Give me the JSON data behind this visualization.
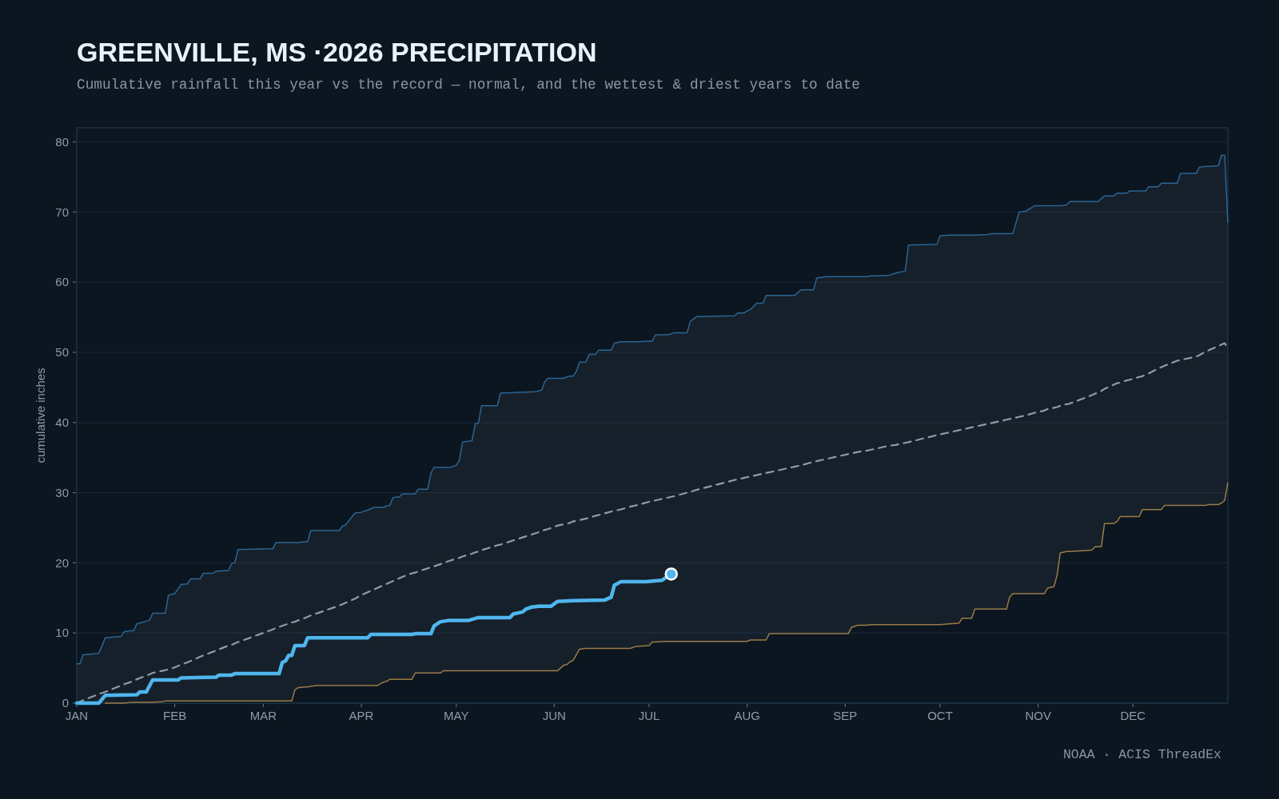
{
  "chart_data": {
    "type": "line",
    "title": "GREENVILLE, MS ·2026 PRECIPITATION",
    "subtitle": "Cumulative rainfall this year vs the record — normal, and the wettest & driest years to date",
    "ylabel": "cumulative inches",
    "annotations": [
      "NOAA · ACIS ThreadEx"
    ],
    "xlim": [
      "--01-01",
      "--12-31"
    ],
    "xticks": [
      {
        "value": "--01-01",
        "label": "JAN"
      },
      {
        "value": "--02-01",
        "label": "FEB"
      },
      {
        "value": "--03-01",
        "label": "MAR"
      },
      {
        "value": "--04-01",
        "label": "APR"
      },
      {
        "value": "--05-01",
        "label": "MAY"
      },
      {
        "value": "--06-01",
        "label": "JUN"
      },
      {
        "value": "--07-01",
        "label": "JUL"
      },
      {
        "value": "--08-01",
        "label": "AUG"
      },
      {
        "value": "--09-01",
        "label": "SEP"
      },
      {
        "value": "--10-01",
        "label": "OCT"
      },
      {
        "value": "--11-01",
        "label": "NOV"
      },
      {
        "value": "--12-01",
        "label": "DEC"
      }
    ],
    "ylim": [
      0,
      82
    ],
    "yticks": [
      0,
      10,
      20,
      30,
      40,
      50,
      60,
      70,
      80
    ],
    "grid": "y",
    "x": [
      "--01-01",
      "--01-02",
      "--01-03",
      "--01-08",
      "--01-10",
      "--01-15",
      "--01-16",
      "--01-18",
      "--01-19",
      "--01-20",
      "--01-24",
      "--01-25",
      "--01-28",
      "--01-29",
      "--01-30",
      "--02-01",
      "--02-03",
      "--02-05",
      "--02-06",
      "--02-09",
      "--02-10",
      "--02-13",
      "--02-14",
      "--02-18",
      "--02-19",
      "--02-20",
      "--02-21",
      "--03-04",
      "--03-05",
      "--03-10",
      "--03-11",
      "--03-12",
      "--03-14",
      "--03-15",
      "--03-16",
      "--03-18",
      "--03-25",
      "--03-26",
      "--03-27",
      "--03-30",
      "--04-01",
      "--04-02",
      "--04-03",
      "--04-05",
      "--04-06",
      "--04-08",
      "--04-09",
      "--04-10",
      "--04-11",
      "--04-13",
      "--04-14",
      "--04-17",
      "--04-18",
      "--04-19",
      "--04-22",
      "--04-23",
      "--04-24",
      "--04-26",
      "--04-27",
      "--04-29",
      "--05-01",
      "--05-02",
      "--05-03",
      "--05-06",
      "--05-07",
      "--05-08",
      "--05-09",
      "--05-14",
      "--05-15",
      "--05-26",
      "--05-28",
      "--05-29",
      "--05-30",
      "--06-02",
      "--06-04",
      "--06-05",
      "--06-06",
      "--06-07",
      "--06-08",
      "--06-09",
      "--06-11",
      "--06-12",
      "--06-14",
      "--06-15",
      "--06-19",
      "--06-20",
      "--06-22",
      "--06-25",
      "--06-27",
      "--07-01",
      "--07-02",
      "--07-03",
      "--07-06",
      "--07-07",
      "--07-09",
      "--07-13",
      "--07-14",
      "--07-16",
      "--07-28",
      "--07-29",
      "--07-31",
      "--08-01",
      "--08-02",
      "--08-04",
      "--08-06",
      "--08-07",
      "--08-08",
      "--08-16",
      "--08-18",
      "--08-22",
      "--08-23",
      "--08-26",
      "--09-02",
      "--09-03",
      "--09-05",
      "--09-08",
      "--09-09",
      "--09-11",
      "--09-15",
      "--09-17",
      "--09-20",
      "--09-21",
      "--09-30",
      "--10-01",
      "--10-04",
      "--10-07",
      "--10-08",
      "--10-11",
      "--10-12",
      "--10-16",
      "--10-17",
      "--10-22",
      "--10-23",
      "--10-24",
      "--10-26",
      "--10-28",
      "--10-31",
      "--11-03",
      "--11-04",
      "--11-06",
      "--11-07",
      "--11-08",
      "--11-10",
      "--11-11",
      "--11-18",
      "--11-19",
      "--11-20",
      "--11-21",
      "--11-22",
      "--11-25",
      "--11-26",
      "--11-27",
      "--11-29",
      "--11-30",
      "--12-03",
      "--12-04",
      "--12-05",
      "--12-06",
      "--12-09",
      "--12-10",
      "--12-11",
      "--12-15",
      "--12-16",
      "--12-21",
      "--12-22",
      "--12-24",
      "--12-25",
      "--12-28",
      "--12-29",
      "--12-30",
      "--12-31"
    ],
    "series": [
      {
        "color": "#2b6593",
        "values": [
          5.6,
          5.6,
          6.9,
          7.1,
          9.3,
          9.5,
          10.2,
          10.3,
          10.3,
          11.3,
          11.8,
          12.8,
          12.8,
          12.8,
          15.4,
          15.6,
          16.9,
          17.0,
          17.7,
          17.7,
          18.5,
          18.5,
          18.8,
          18.9,
          19.9,
          20.0,
          21.9,
          22.0,
          22.9,
          22.9,
          22.9,
          22.9,
          23.0,
          23.0,
          24.6,
          24.6,
          24.6,
          25.2,
          25.4,
          27.1,
          27.2,
          27.4,
          27.5,
          27.9,
          27.9,
          27.9,
          28.1,
          28.2,
          29.3,
          29.4,
          29.8,
          29.8,
          29.8,
          30.5,
          30.5,
          32.8,
          33.6,
          33.6,
          33.6,
          33.6,
          33.9,
          34.6,
          37.2,
          37.4,
          39.8,
          39.9,
          42.4,
          42.4,
          44.2,
          44.4,
          44.6,
          45.8,
          46.3,
          46.3,
          46.3,
          46.5,
          46.6,
          46.6,
          47.3,
          48.6,
          48.6,
          49.7,
          49.7,
          50.3,
          50.3,
          51.3,
          51.5,
          51.5,
          51.5,
          51.6,
          51.6,
          52.5,
          52.5,
          52.5,
          52.8,
          52.8,
          54.4,
          55.1,
          55.2,
          55.6,
          55.6,
          55.9,
          56.1,
          57.0,
          57.0,
          58.1,
          58.1,
          58.1,
          58.9,
          58.9,
          60.6,
          60.8,
          60.8,
          60.8,
          60.8,
          60.8,
          60.9,
          60.9,
          61.0,
          61.3,
          61.6,
          65.3,
          65.4,
          66.6,
          66.7,
          66.7,
          66.7,
          66.7,
          66.7,
          66.8,
          66.9,
          66.9,
          66.9,
          66.9,
          70.0,
          70.1,
          70.9,
          70.9,
          70.9,
          70.9,
          70.9,
          70.9,
          71.0,
          71.5,
          71.5,
          71.5,
          71.5,
          71.9,
          72.3,
          72.3,
          72.7,
          72.7,
          72.7,
          73.0,
          73.0,
          73.0,
          73.0,
          73.6,
          73.6,
          74.1,
          74.1,
          74.1,
          75.5,
          75.5,
          76.4,
          76.5,
          76.5,
          76.6,
          78.1,
          78.1,
          68.5
        ]
      },
      {
        "color": "#9a7b48",
        "values": [
          null,
          null,
          null,
          null,
          0,
          0,
          0,
          0.1,
          0.1,
          0.1,
          0.1,
          0.1,
          0.2,
          0.3,
          0.3,
          0.3,
          0.3,
          0.3,
          0.3,
          0.3,
          0.3,
          0.3,
          0.3,
          0.3,
          0.3,
          0.3,
          0.3,
          0.3,
          0.3,
          0.3,
          1.9,
          2.2,
          2.3,
          2.3,
          2.4,
          2.5,
          2.5,
          2.5,
          2.5,
          2.5,
          2.5,
          2.5,
          2.5,
          2.5,
          2.5,
          3.0,
          3.1,
          3.4,
          3.4,
          3.4,
          3.4,
          3.4,
          4.3,
          4.3,
          4.3,
          4.3,
          4.3,
          4.3,
          4.6,
          4.6,
          4.6,
          4.6,
          4.6,
          4.6,
          4.6,
          4.6,
          4.6,
          4.6,
          4.6,
          4.6,
          4.6,
          4.6,
          4.6,
          4.6,
          5.4,
          5.5,
          5.9,
          6.1,
          6.9,
          7.7,
          7.8,
          7.8,
          7.8,
          7.8,
          7.8,
          7.8,
          7.8,
          7.8,
          8.1,
          8.2,
          8.7,
          8.7,
          8.8,
          8.8,
          8.8,
          8.8,
          8.8,
          8.8,
          8.8,
          8.8,
          8.8,
          8.8,
          9.0,
          9.0,
          9.0,
          9.0,
          9.9,
          9.9,
          9.9,
          9.9,
          9.9,
          9.9,
          9.9,
          10.8,
          11.1,
          11.1,
          11.2,
          11.2,
          11.2,
          11.2,
          11.2,
          11.2,
          11.2,
          11.2,
          11.3,
          11.4,
          12.1,
          12.1,
          13.4,
          13.4,
          13.4,
          13.4,
          15.1,
          15.6,
          15.6,
          15.6,
          15.6,
          15.6,
          16.4,
          16.6,
          18.2,
          21.4,
          21.6,
          21.6,
          21.8,
          22.3,
          22.3,
          22.3,
          25.6,
          25.6,
          25.9,
          26.6,
          26.6,
          26.6,
          26.6,
          27.6,
          27.6,
          27.6,
          27.6,
          27.6,
          28.2,
          28.2,
          28.2,
          28.2,
          28.2,
          28.2,
          28.3,
          28.3,
          28.5,
          28.9,
          31.4
        ]
      },
      {
        "color": "#8d9bab",
        "line_style": "dashed",
        "values": [
          0,
          0.2,
          0.4,
          1.3,
          1.6,
          2.5,
          2.7,
          3.0,
          3.2,
          3.4,
          4.1,
          4.3,
          4.6,
          4.7,
          4.8,
          5.1,
          5.5,
          5.8,
          6.0,
          6.6,
          6.8,
          7.3,
          7.5,
          8.2,
          8.3,
          8.5,
          8.7,
          10.5,
          10.7,
          11.5,
          11.6,
          11.8,
          12.1,
          12.3,
          12.5,
          12.8,
          13.9,
          14.1,
          14.3,
          14.9,
          15.4,
          15.6,
          15.8,
          16.2,
          16.4,
          16.8,
          17.0,
          17.2,
          17.4,
          17.8,
          18.0,
          18.5,
          18.6,
          18.8,
          19.2,
          19.4,
          19.5,
          19.8,
          20.0,
          20.3,
          20.6,
          20.7,
          20.9,
          21.3,
          21.5,
          21.6,
          21.8,
          22.5,
          22.6,
          24.2,
          24.5,
          24.7,
          24.8,
          25.3,
          25.5,
          25.6,
          25.7,
          25.9,
          26.0,
          26.1,
          26.3,
          26.4,
          26.7,
          26.8,
          27.3,
          27.4,
          27.6,
          28.0,
          28.2,
          28.7,
          28.8,
          28.9,
          29.2,
          29.3,
          29.5,
          30.0,
          30.1,
          30.4,
          31.8,
          31.9,
          32.1,
          32.2,
          32.3,
          32.5,
          32.7,
          32.8,
          32.9,
          33.7,
          33.9,
          34.4,
          34.5,
          34.8,
          35.5,
          35.6,
          35.8,
          36.0,
          36.1,
          36.3,
          36.7,
          36.8,
          37.1,
          37.2,
          38.2,
          38.3,
          38.6,
          38.9,
          39.0,
          39.3,
          39.4,
          39.8,
          39.9,
          40.4,
          40.5,
          40.6,
          40.8,
          41.0,
          41.4,
          41.7,
          41.9,
          42.1,
          42.2,
          42.4,
          42.6,
          42.7,
          43.9,
          44.1,
          44.3,
          44.5,
          44.8,
          45.4,
          45.6,
          45.7,
          46.0,
          46.1,
          46.5,
          46.6,
          46.8,
          47.0,
          47.7,
          47.9,
          48.1,
          48.8,
          48.9,
          49.4,
          49.6,
          50.1,
          50.3,
          50.9,
          51.1,
          51.3,
          50.6
        ],
        "lower": [
          0,
          0,
          0,
          0,
          0,
          0,
          0,
          0.1,
          0.1,
          0.1,
          0.1,
          0.1,
          0.2,
          0.3,
          0.3,
          0.3,
          0.3,
          0.3,
          0.3,
          0.3,
          0.3,
          0.3,
          0.3,
          0.3,
          0.3,
          0.3,
          0.3,
          0.3,
          0.3,
          0.3,
          1.9,
          2.2,
          2.3,
          2.3,
          2.4,
          2.5,
          2.5,
          2.5,
          2.5,
          2.5,
          2.5,
          2.5,
          2.5,
          2.5,
          2.5,
          3.0,
          3.1,
          3.4,
          3.4,
          3.4,
          3.4,
          3.4,
          4.3,
          4.3,
          4.3,
          4.3,
          4.3,
          4.3,
          4.6,
          4.6,
          4.6,
          4.6,
          4.6,
          4.6,
          4.6,
          4.6,
          4.6,
          4.6,
          4.6,
          4.6,
          4.6,
          4.6,
          4.6,
          4.6,
          5.4,
          5.5,
          5.9,
          6.1,
          6.9,
          7.7,
          7.8,
          7.8,
          7.8,
          7.8,
          7.8,
          7.8,
          7.8,
          7.8,
          8.1,
          8.2,
          8.7,
          8.7,
          8.8,
          8.8,
          8.8,
          8.8,
          8.8,
          8.8,
          8.8,
          8.8,
          8.8,
          8.8,
          9.0,
          9.0,
          9.0,
          9.0,
          9.9,
          9.9,
          9.9,
          9.9,
          9.9,
          9.9,
          9.9,
          10.8,
          11.1,
          11.1,
          11.2,
          11.2,
          11.2,
          11.2,
          11.2,
          11.2,
          11.2,
          11.2,
          11.3,
          11.4,
          12.1,
          12.1,
          13.4,
          13.4,
          13.4,
          13.4,
          15.1,
          15.6,
          15.6,
          15.6,
          15.6,
          15.6,
          16.4,
          16.6,
          18.2,
          21.4,
          21.6,
          21.6,
          21.8,
          22.3,
          22.3,
          22.3,
          25.6,
          25.6,
          25.9,
          26.6,
          26.6,
          26.6,
          26.6,
          27.6,
          27.6,
          27.6,
          27.6,
          27.6,
          28.2,
          28.2,
          28.2,
          28.2,
          28.2,
          28.2,
          28.3,
          28.3,
          28.5,
          28.9,
          31.4
        ],
        "upper": [
          5.6,
          5.6,
          6.9,
          7.1,
          9.3,
          9.5,
          10.2,
          10.3,
          10.3,
          11.3,
          11.8,
          12.8,
          12.8,
          12.8,
          15.4,
          15.6,
          16.9,
          17.0,
          17.7,
          17.7,
          18.5,
          18.5,
          18.8,
          18.9,
          19.9,
          20.0,
          21.9,
          22.0,
          22.9,
          22.9,
          22.9,
          22.9,
          23.0,
          23.0,
          24.6,
          24.6,
          24.6,
          25.2,
          25.4,
          27.1,
          27.2,
          27.4,
          27.5,
          27.9,
          27.9,
          27.9,
          28.1,
          28.2,
          29.3,
          29.4,
          29.8,
          29.8,
          29.8,
          30.5,
          30.5,
          32.8,
          33.6,
          33.6,
          33.6,
          33.6,
          33.9,
          34.6,
          37.2,
          37.4,
          39.8,
          39.9,
          42.4,
          42.4,
          44.2,
          44.4,
          44.6,
          45.8,
          46.3,
          46.3,
          46.3,
          46.5,
          46.6,
          46.6,
          47.3,
          48.6,
          48.6,
          49.7,
          49.7,
          50.3,
          50.3,
          51.3,
          51.5,
          51.5,
          51.5,
          51.6,
          51.6,
          52.5,
          52.5,
          52.5,
          52.8,
          52.8,
          54.4,
          55.1,
          55.2,
          55.6,
          55.6,
          55.9,
          56.1,
          57.0,
          57.0,
          58.1,
          58.1,
          58.1,
          58.9,
          58.9,
          60.6,
          60.8,
          60.8,
          60.8,
          60.8,
          60.8,
          60.9,
          60.9,
          61.0,
          61.3,
          61.6,
          65.3,
          65.4,
          66.6,
          66.7,
          66.7,
          66.7,
          66.7,
          66.7,
          66.8,
          66.9,
          66.9,
          66.9,
          66.9,
          70.0,
          70.1,
          70.9,
          70.9,
          70.9,
          70.9,
          70.9,
          70.9,
          71.0,
          71.5,
          71.5,
          71.5,
          71.5,
          71.9,
          72.3,
          72.3,
          72.7,
          72.7,
          72.7,
          73.0,
          73.0,
          73.0,
          73.0,
          73.6,
          73.6,
          74.1,
          74.1,
          74.1,
          75.5,
          75.5,
          76.4,
          76.5,
          76.5,
          76.6,
          78.1,
          78.1,
          68.5
        ]
      },
      {
        "color": "#4fb6ee",
        "x": [
          "--01-01",
          "--01-08",
          "--01-10",
          "--01-20",
          "--01-21",
          "--01-23",
          "--01-25",
          "--02-02",
          "--02-03",
          "--02-14",
          "--02-15",
          "--02-19",
          "--02-20",
          "--03-06",
          "--03-07",
          "--03-08",
          "--03-09",
          "--03-10",
          "--03-11",
          "--03-14",
          "--03-15",
          "--04-03",
          "--04-04",
          "--04-17",
          "--04-18",
          "--04-23",
          "--04-24",
          "--04-26",
          "--04-29",
          "--05-05",
          "--05-08",
          "--05-18",
          "--05-19",
          "--05-22",
          "--05-23",
          "--05-25",
          "--05-27",
          "--05-31",
          "--06-02",
          "--06-07",
          "--06-17",
          "--06-19",
          "--06-20",
          "--06-22",
          "--06-30",
          "--07-05",
          "--07-08"
        ],
        "values": [
          0,
          0,
          1.1,
          1.2,
          1.6,
          1.6,
          3.3,
          3.3,
          3.6,
          3.7,
          4.0,
          4.0,
          4.2,
          4.2,
          5.8,
          6.0,
          6.8,
          6.8,
          8.2,
          8.2,
          9.3,
          9.3,
          9.8,
          9.8,
          9.9,
          9.9,
          11.0,
          11.6,
          11.8,
          11.8,
          12.2,
          12.2,
          12.7,
          13.0,
          13.4,
          13.7,
          13.8,
          13.8,
          14.5,
          14.6,
          14.7,
          15.1,
          16.8,
          17.3,
          17.3,
          17.5,
          18.4
        ]
      },
      {
        "type": "scatter",
        "color": "#4fb6ee",
        "marker": "circle",
        "x": [
          "--07-08"
        ],
        "values": [
          18.4
        ]
      }
    ]
  }
}
